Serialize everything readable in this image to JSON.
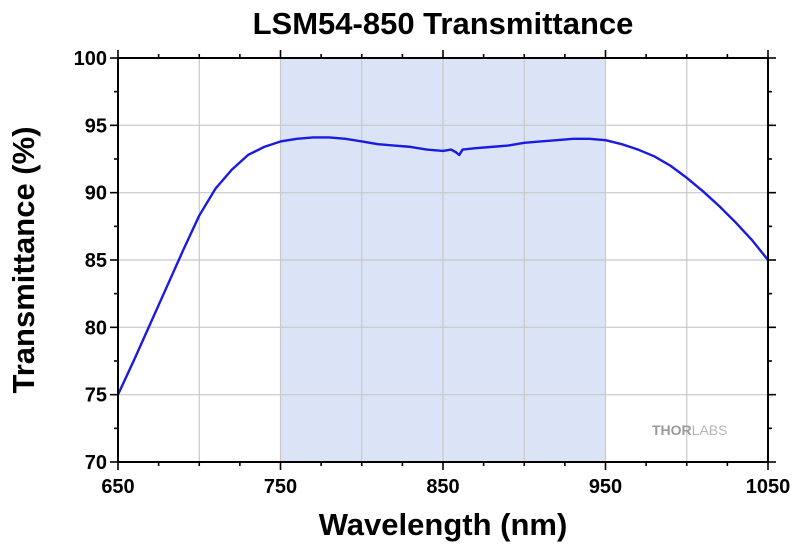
{
  "chart_data": {
    "type": "line",
    "title": "LSM54-850 Transmittance",
    "xlabel": "Wavelength (nm)",
    "ylabel": "Transmittance (%)",
    "xlim": [
      650,
      1050
    ],
    "ylim": [
      70,
      100
    ],
    "x_ticks": [
      650,
      750,
      850,
      950,
      1050
    ],
    "y_ticks": [
      70,
      75,
      80,
      85,
      90,
      95,
      100
    ],
    "x_minor_step": 50,
    "grid": true,
    "highlight_band": {
      "x": [
        750,
        950
      ],
      "color": "#dbe4f6"
    },
    "series": [
      {
        "color": "#1a1ae0",
        "x": [
          650,
          660,
          670,
          680,
          690,
          700,
          710,
          720,
          730,
          740,
          750,
          760,
          770,
          780,
          790,
          800,
          810,
          820,
          830,
          840,
          850,
          855,
          858,
          860,
          862,
          870,
          880,
          890,
          900,
          910,
          920,
          930,
          940,
          950,
          960,
          970,
          980,
          990,
          1000,
          1010,
          1020,
          1030,
          1040,
          1050
        ],
        "y": [
          75.0,
          77.6,
          80.3,
          83.0,
          85.7,
          88.3,
          90.3,
          91.7,
          92.8,
          93.4,
          93.8,
          94.0,
          94.1,
          94.1,
          94.0,
          93.8,
          93.6,
          93.5,
          93.4,
          93.2,
          93.1,
          93.2,
          93.0,
          92.8,
          93.2,
          93.3,
          93.4,
          93.5,
          93.7,
          93.8,
          93.9,
          94.0,
          94.0,
          93.9,
          93.6,
          93.2,
          92.7,
          92.0,
          91.1,
          90.1,
          89.0,
          87.8,
          86.5,
          85.0
        ]
      }
    ]
  },
  "watermark": {
    "part1": "THOR",
    "part2": "LABS"
  },
  "colors": {
    "grid": "#c8c8c8",
    "frame": "#000000",
    "band": "#dbe4f6",
    "line": "#1a1ae0"
  }
}
